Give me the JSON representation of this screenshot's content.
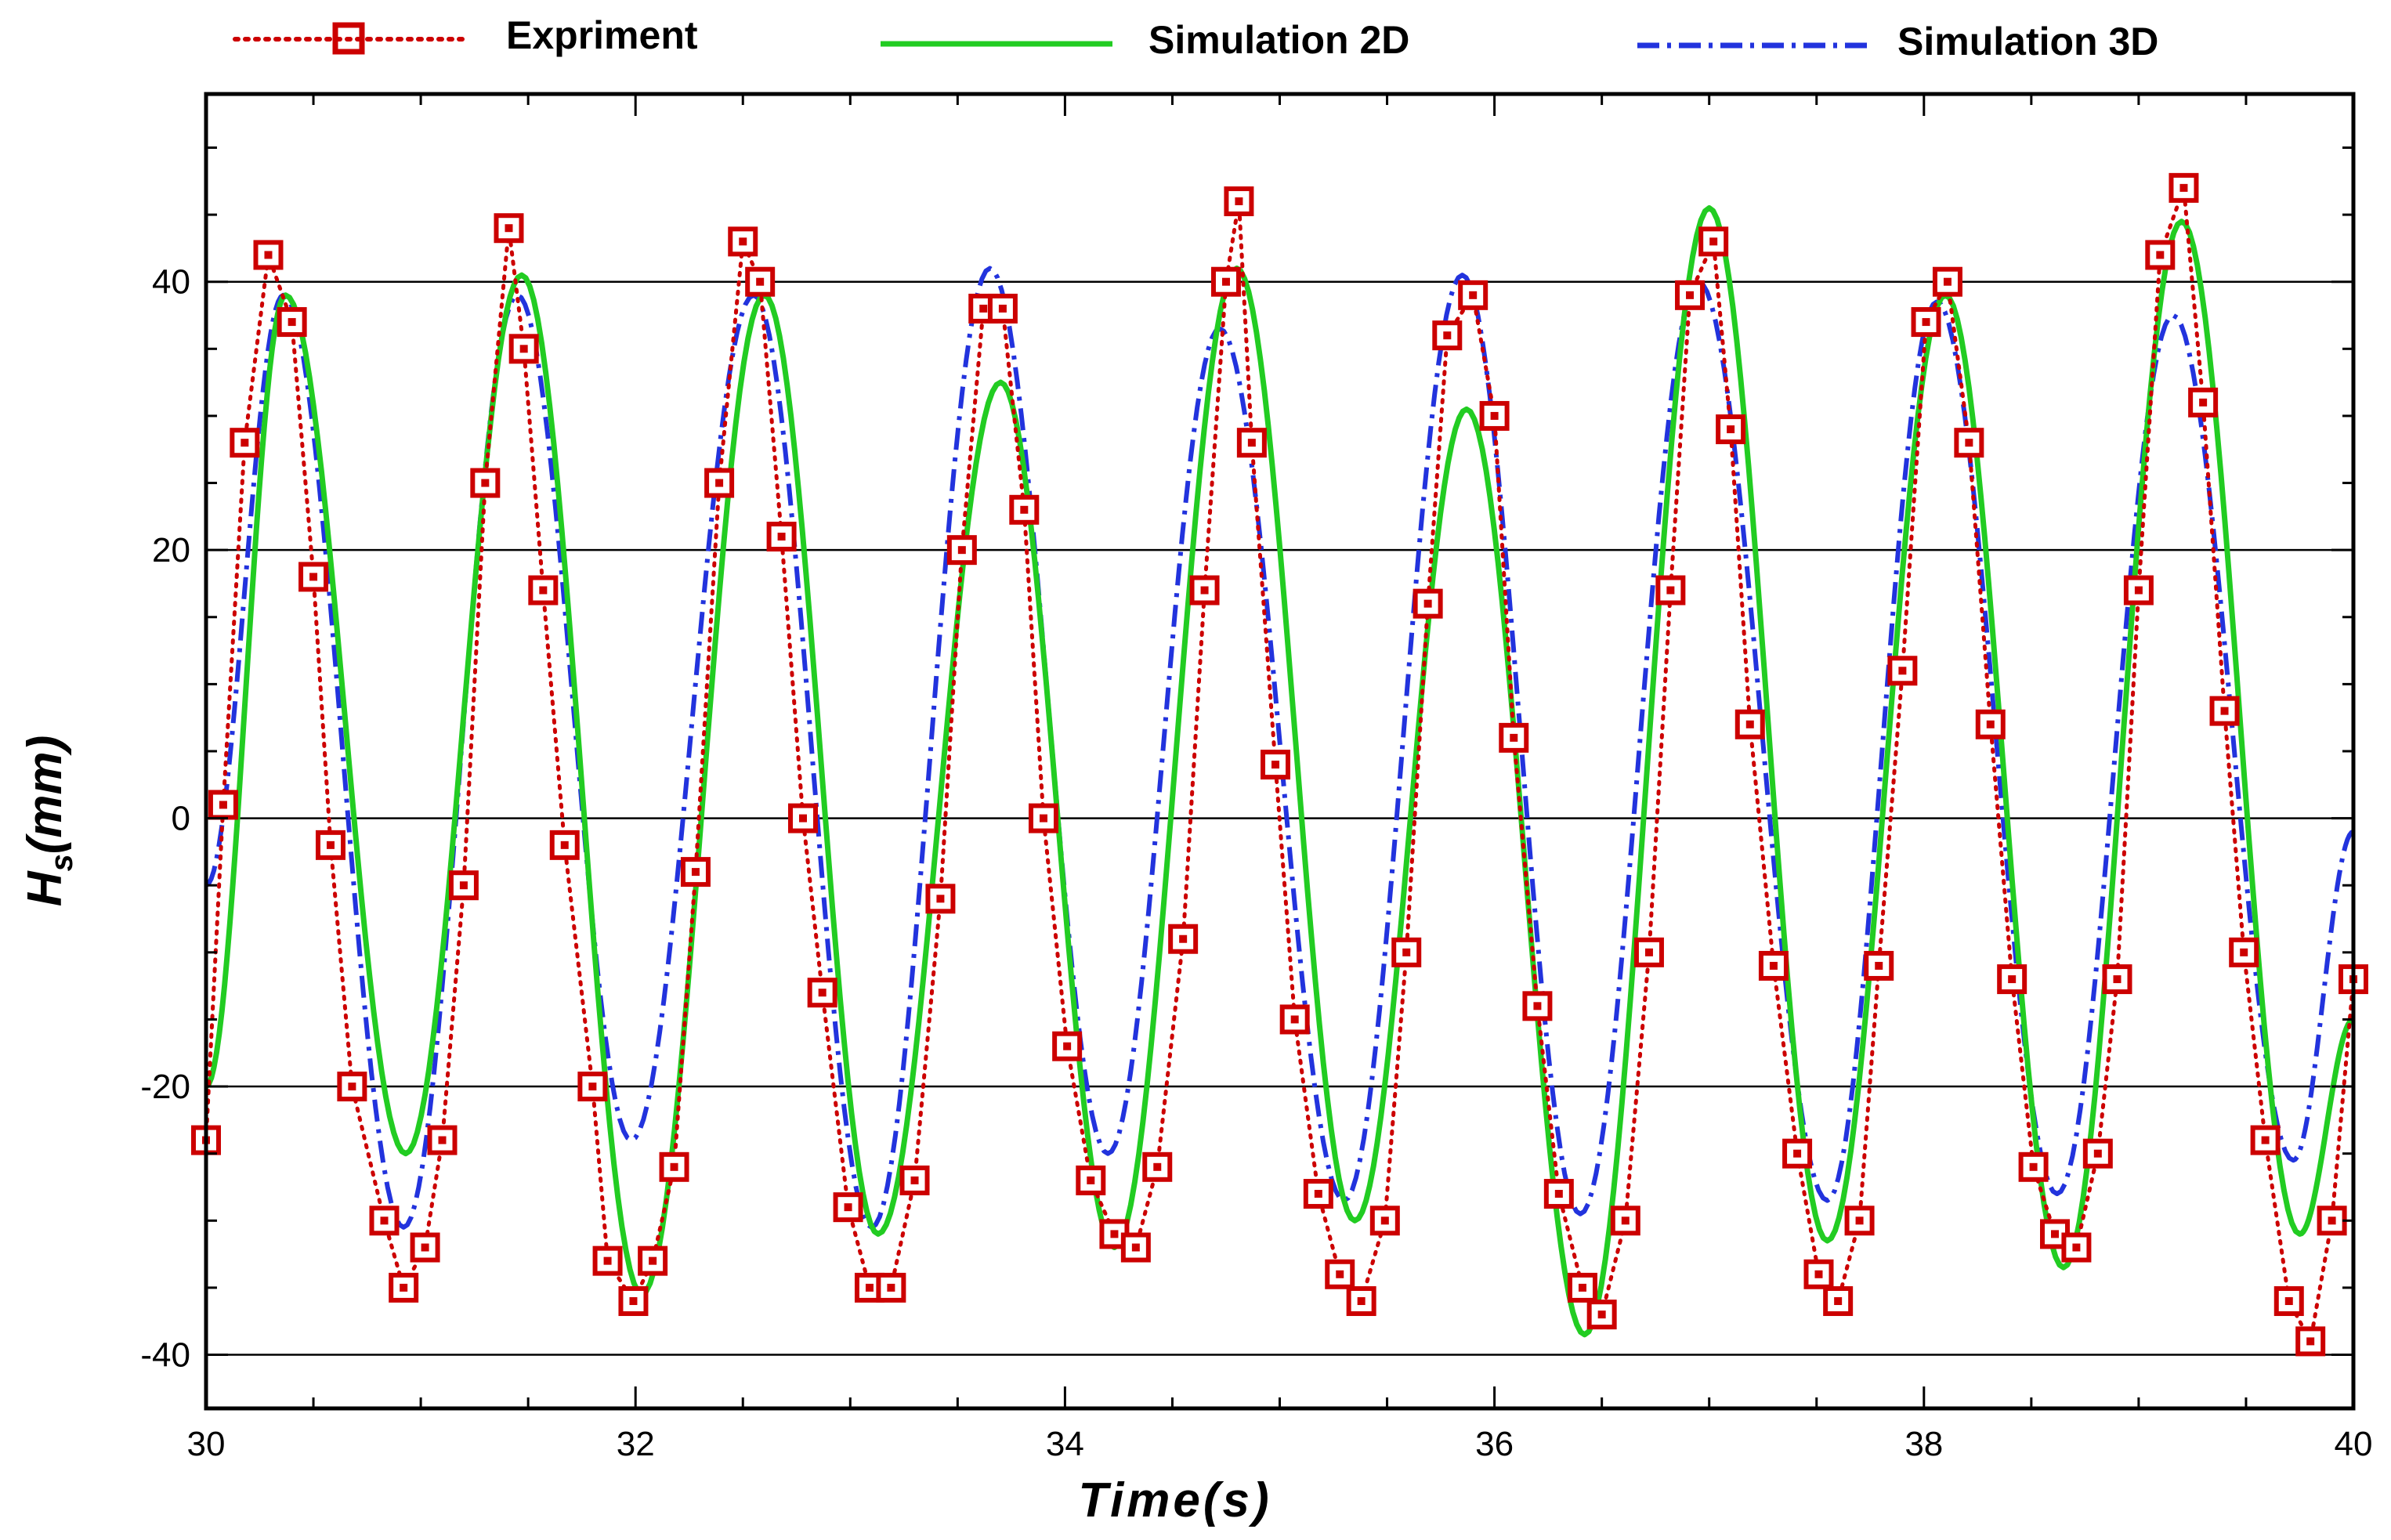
{
  "chart_data": {
    "type": "line",
    "title": "",
    "xlabel": "Time(s)",
    "ylabel_main": "H",
    "ylabel_sub": "s",
    "ylabel_unit": "(mm)",
    "xlim": [
      30,
      40
    ],
    "ylim": [
      -44,
      54
    ],
    "x_ticks": [
      30,
      32,
      34,
      36,
      38,
      40
    ],
    "x_tick_labels": [
      "30",
      "32",
      "34",
      "36",
      "38",
      "40"
    ],
    "y_ticks": [
      -40,
      -20,
      0,
      20,
      40
    ],
    "y_tick_labels": [
      "-40",
      "-20",
      "0",
      "20",
      "40"
    ],
    "grid": "horizontal",
    "legend_position": "top",
    "series": [
      {
        "name": "Expriment",
        "style": "dotted-square-markers",
        "color": "#cc0000",
        "x": [
          30.0,
          30.08,
          30.18,
          30.29,
          30.4,
          30.5,
          30.58,
          30.68,
          30.83,
          30.92,
          31.02,
          31.1,
          31.2,
          31.3,
          31.41,
          31.48,
          31.57,
          31.67,
          31.8,
          31.87,
          31.99,
          32.08,
          32.18,
          32.28,
          32.39,
          32.5,
          32.58,
          32.68,
          32.78,
          32.87,
          32.99,
          33.09,
          33.19,
          33.3,
          33.42,
          33.52,
          33.62,
          33.71,
          33.81,
          33.9,
          34.01,
          34.12,
          34.23,
          34.33,
          34.43,
          34.55,
          34.65,
          34.75,
          34.81,
          34.87,
          34.98,
          35.07,
          35.18,
          35.28,
          35.38,
          35.49,
          35.59,
          35.69,
          35.78,
          35.9,
          36.0,
          36.09,
          36.2,
          36.3,
          36.41,
          36.5,
          36.61,
          36.72,
          36.82,
          36.91,
          37.02,
          37.1,
          37.19,
          37.3,
          37.41,
          37.51,
          37.6,
          37.7,
          37.79,
          37.9,
          38.01,
          38.11,
          38.21,
          38.31,
          38.41,
          38.51,
          38.61,
          38.71,
          38.81,
          38.9,
          39.0,
          39.1,
          39.21,
          39.3,
          39.4,
          39.49,
          39.59,
          39.7,
          39.8,
          39.9,
          40.0
        ],
        "values": [
          -24,
          1,
          28,
          42,
          37,
          18,
          -2,
          -20,
          -30,
          -35,
          -32,
          -24,
          -5,
          25,
          44,
          35,
          17,
          -2,
          -20,
          -33,
          -36,
          -33,
          -26,
          -4,
          25,
          43,
          40,
          21,
          0,
          -13,
          -29,
          -35,
          -35,
          -27,
          -6,
          20,
          38,
          38,
          23,
          0,
          -17,
          -27,
          -31,
          -32,
          -26,
          -9,
          17,
          40,
          46,
          28,
          4,
          -15,
          -28,
          -34,
          -36,
          -30,
          -10,
          16,
          36,
          39,
          30,
          6,
          -14,
          -28,
          -35,
          -37,
          -30,
          -10,
          17,
          39,
          43,
          29,
          7,
          -11,
          -25,
          -34,
          -36,
          -30,
          -11,
          11,
          37,
          40,
          28,
          7,
          -12,
          -26,
          -31,
          -32,
          -25,
          -12,
          17,
          42,
          47,
          31,
          8,
          -10,
          -24,
          -36,
          -39,
          -30,
          -12
        ]
      },
      {
        "name": "Simulation 2D",
        "style": "solid",
        "color": "#22cc22",
        "cycles": [
          {
            "peak_t": 30.37,
            "peak": 39,
            "trough_t": 30.93,
            "trough": -25
          },
          {
            "peak_t": 31.47,
            "peak": 40.5,
            "trough_t": 32.03,
            "trough": -35.5
          },
          {
            "peak_t": 32.6,
            "peak": 39,
            "trough_t": 33.13,
            "trough": -31
          },
          {
            "peak_t": 33.7,
            "peak": 32.5,
            "trough_t": 34.23,
            "trough": -32
          },
          {
            "peak_t": 34.8,
            "peak": 41,
            "trough_t": 35.35,
            "trough": -30
          },
          {
            "peak_t": 35.87,
            "peak": 30.5,
            "trough_t": 36.42,
            "trough": -38.5
          },
          {
            "peak_t": 37.0,
            "peak": 45.5,
            "trough_t": 37.55,
            "trough": -31.5
          },
          {
            "peak_t": 38.1,
            "peak": 39,
            "trough_t": 38.65,
            "trough": -33.5
          },
          {
            "peak_t": 39.2,
            "peak": 44.5,
            "trough_t": 39.75,
            "trough": -31
          }
        ],
        "start_value": -20,
        "end_value": -15
      },
      {
        "name": "Simulation 3D",
        "style": "dash-dot",
        "color": "#2233dd",
        "cycles": [
          {
            "peak_t": 30.36,
            "peak": 39,
            "trough_t": 30.92,
            "trough": -30.5
          },
          {
            "peak_t": 31.45,
            "peak": 39,
            "trough_t": 31.98,
            "trough": -24
          },
          {
            "peak_t": 32.55,
            "peak": 39,
            "trough_t": 33.1,
            "trough": -30.5
          },
          {
            "peak_t": 33.65,
            "peak": 41,
            "trough_t": 34.2,
            "trough": -25
          },
          {
            "peak_t": 34.72,
            "peak": 36.5,
            "trough_t": 35.3,
            "trough": -28.5
          },
          {
            "peak_t": 35.85,
            "peak": 40.5,
            "trough_t": 36.4,
            "trough": -29.5
          },
          {
            "peak_t": 36.95,
            "peak": 40,
            "trough_t": 37.55,
            "trough": -28.5
          },
          {
            "peak_t": 38.06,
            "peak": 38.5,
            "trough_t": 38.62,
            "trough": -28
          },
          {
            "peak_t": 39.16,
            "peak": 37.5,
            "trough_t": 39.72,
            "trough": -25.5
          }
        ],
        "start_value": -5,
        "end_value": -1
      }
    ]
  }
}
